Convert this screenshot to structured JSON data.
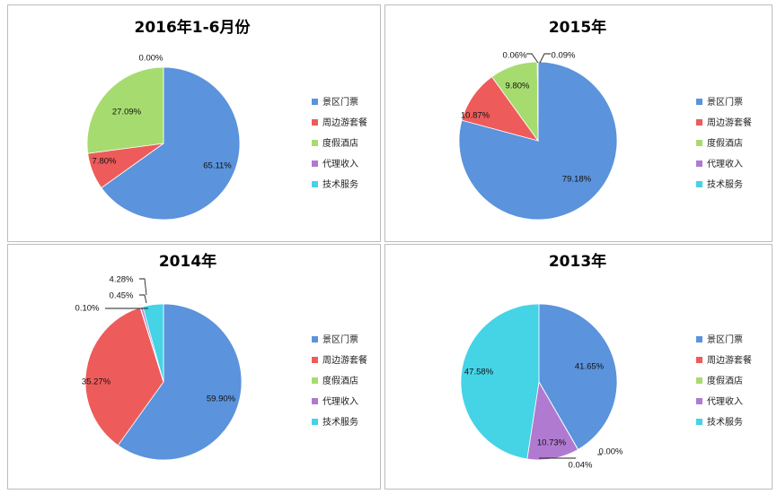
{
  "legend": [
    "景区门票",
    "周边游套餐",
    "度假酒店",
    "代理收入",
    "技术服务"
  ],
  "colors": [
    "#5b93dc",
    "#ee5b5b",
    "#a6dc6f",
    "#b07ad0",
    "#45d3e6"
  ],
  "chart_data": [
    {
      "type": "pie",
      "title": "2016年1-6月份",
      "categories": [
        "景区门票",
        "周边游套餐",
        "度假酒店",
        "代理收入",
        "技术服务"
      ],
      "values": [
        65.11,
        7.8,
        27.09,
        0.0,
        0.0
      ],
      "labels": [
        "65.11%",
        "7.80%",
        "27.09%",
        "0.00%",
        ""
      ],
      "legend_position": "right"
    },
    {
      "type": "pie",
      "title": "2015年",
      "categories": [
        "景区门票",
        "周边游套餐",
        "度假酒店",
        "代理收入",
        "技术服务"
      ],
      "values": [
        79.18,
        10.87,
        9.8,
        0.06,
        0.09
      ],
      "labels": [
        "79.18%",
        "10.87%",
        "9.80%",
        "0.06%",
        "0.09%"
      ],
      "legend_position": "right"
    },
    {
      "type": "pie",
      "title": "2014年",
      "categories": [
        "景区门票",
        "周边游套餐",
        "度假酒店",
        "代理收入",
        "技术服务"
      ],
      "values": [
        59.9,
        35.27,
        0.1,
        0.45,
        4.28
      ],
      "labels": [
        "59.90%",
        "35.27%",
        "0.10%",
        "0.45%",
        "4.28%"
      ],
      "legend_position": "right"
    },
    {
      "type": "pie",
      "title": "2013年",
      "categories": [
        "景区门票",
        "周边游套餐",
        "度假酒店",
        "代理收入",
        "技术服务"
      ],
      "values": [
        41.65,
        0.0,
        0.04,
        10.73,
        47.58
      ],
      "labels": [
        "41.65%",
        "0.00%",
        "0.04%",
        "10.73%",
        "47.58%"
      ],
      "legend_position": "right"
    }
  ]
}
